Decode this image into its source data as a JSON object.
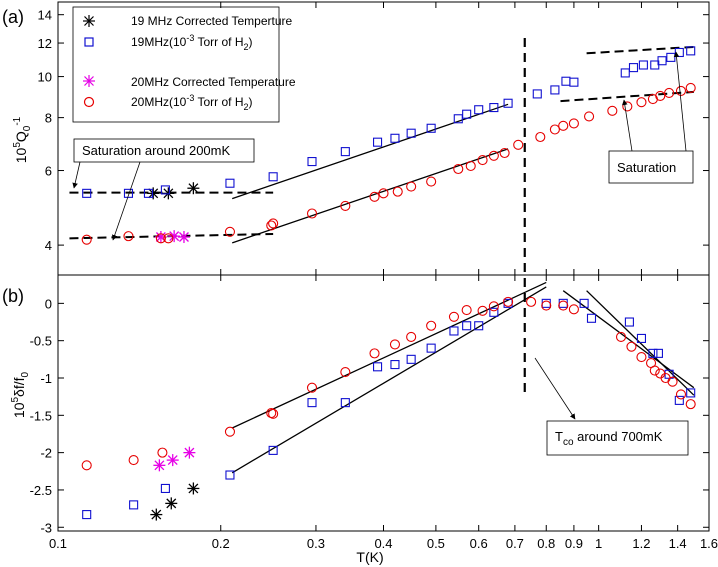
{
  "chart_data": [
    {
      "type": "scatter",
      "panel_label": "(a)",
      "xlabel": "",
      "ylabel": "10^5Q_0^-1",
      "ylabel_parts": {
        "base": "10",
        "exp1": "5",
        "main": "Q",
        "sub": "0",
        "exp2": "-1"
      },
      "xscale": "log",
      "yscale": "log",
      "xlim": [
        0.1,
        1.6
      ],
      "ylim": [
        3.4,
        15
      ],
      "yticks": [
        4,
        6,
        8,
        10,
        12,
        14
      ],
      "ytick_labels": [
        "4",
        "6",
        "8",
        "10",
        "12",
        "14"
      ],
      "series": [
        {
          "name": "19 MHz Corrected Temperture",
          "marker": "asterisk",
          "color": "#000000",
          "x": [
            0.15,
            0.16,
            0.178
          ],
          "y": [
            5.3,
            5.3,
            5.45
          ]
        },
        {
          "name": "19MHz(10^-3 Torr of H2)",
          "legend_parts": {
            "pre": "19MHz(10",
            "sup": "-3",
            "mid": " Torr of H",
            "sub": "2",
            "post": ")"
          },
          "marker": "square",
          "color": "#1010d0",
          "x": [
            0.113,
            0.135,
            0.147,
            0.158,
            0.208,
            0.25,
            0.295,
            0.34,
            0.39,
            0.42,
            0.45,
            0.49,
            0.55,
            0.57,
            0.6,
            0.64,
            0.68,
            0.77,
            0.83,
            0.87,
            0.9,
            1.12,
            1.16,
            1.21,
            1.27,
            1.31,
            1.36,
            1.41,
            1.48
          ],
          "y": [
            5.3,
            5.3,
            5.3,
            5.4,
            5.6,
            5.8,
            6.3,
            6.65,
            7.0,
            7.15,
            7.35,
            7.55,
            7.95,
            8.15,
            8.35,
            8.45,
            8.65,
            9.1,
            9.3,
            9.75,
            9.7,
            10.2,
            10.5,
            10.65,
            10.65,
            10.9,
            11.1,
            11.4,
            11.5
          ]
        },
        {
          "name": "20MHz Corrected Temperature",
          "marker": "asterisk",
          "color": "#e600e6",
          "x": [
            0.155,
            0.164,
            0.171
          ],
          "y": [
            4.18,
            4.2,
            4.18
          ]
        },
        {
          "name": "20MHz(10^-3 Torr of H2)",
          "legend_parts": {
            "pre": "20MHz(10",
            "sup": "-3",
            "mid": " Torr of H",
            "sub": "2",
            "post": ")"
          },
          "marker": "circle",
          "color": "#e60000",
          "x": [
            0.113,
            0.135,
            0.155,
            0.16,
            0.208,
            0.248,
            0.25,
            0.295,
            0.34,
            0.385,
            0.4,
            0.425,
            0.45,
            0.49,
            0.55,
            0.58,
            0.61,
            0.64,
            0.67,
            0.71,
            0.78,
            0.83,
            0.86,
            0.9,
            0.96,
            1.06,
            1.13,
            1.2,
            1.26,
            1.3,
            1.35,
            1.42,
            1.48
          ],
          "y": [
            4.12,
            4.2,
            4.15,
            4.15,
            4.3,
            4.45,
            4.5,
            4.75,
            4.95,
            5.2,
            5.3,
            5.35,
            5.5,
            5.65,
            6.05,
            6.15,
            6.35,
            6.5,
            6.6,
            6.9,
            7.2,
            7.5,
            7.65,
            7.75,
            8.05,
            8.3,
            8.5,
            8.7,
            8.85,
            9.0,
            9.15,
            9.25,
            9.4
          ]
        }
      ],
      "fit_lines": [
        {
          "style": "dashed",
          "x": [
            0.105,
            0.25
          ],
          "y": [
            5.32,
            5.32
          ]
        },
        {
          "style": "dashed",
          "x": [
            0.105,
            0.25
          ],
          "y": [
            4.15,
            4.25
          ]
        },
        {
          "style": "solid",
          "x": [
            0.21,
            0.68
          ],
          "y": [
            5.15,
            8.6
          ]
        },
        {
          "style": "solid",
          "x": [
            0.21,
            0.68
          ],
          "y": [
            4.05,
            6.75
          ]
        },
        {
          "style": "dashed",
          "x": [
            0.95,
            1.5
          ],
          "y": [
            11.35,
            11.75
          ]
        },
        {
          "style": "dashed",
          "x": [
            0.85,
            1.5
          ],
          "y": [
            8.75,
            9.2
          ]
        }
      ],
      "annotations": [
        {
          "text": "Saturation around 200mK",
          "arrows_to": [
            [
              0.125,
              4.2
            ],
            [
              0.115,
              5.32
            ]
          ]
        },
        {
          "text": "Saturation",
          "arrows_to": [
            [
              1.43,
              9.2
            ],
            [
              1.2,
              8.9
            ]
          ]
        }
      ]
    },
    {
      "type": "scatter",
      "panel_label": "(b)",
      "xlabel": "T(K)",
      "ylabel": "10^5δf/f_0",
      "ylabel_parts": {
        "base": "10",
        "exp": "5",
        "main": "δf/f",
        "sub": "0"
      },
      "xscale": "log",
      "yscale": "linear",
      "xlim": [
        0.1,
        1.6
      ],
      "ylim": [
        -3.05,
        0.38
      ],
      "xticks": [
        0.1,
        0.2,
        0.3,
        0.4,
        0.5,
        0.6,
        0.7,
        0.8,
        0.9,
        1,
        1.2,
        1.4,
        1.6
      ],
      "xtick_labels": [
        "0.1",
        "0.2",
        "0.3",
        "0.4",
        "0.5",
        "0.6",
        "0.7",
        "0.8",
        "0.9",
        "1",
        "1.2",
        "1.4",
        "1.6"
      ],
      "yticks": [
        0,
        -0.5,
        -1,
        -1.5,
        -2,
        -2.5,
        -3
      ],
      "ytick_labels": [
        "0",
        "-0.5",
        "-1",
        "-1.5",
        "-2",
        "-2.5",
        "-3"
      ],
      "series": [
        {
          "name": "19 MHz Corrected Temperture",
          "marker": "asterisk",
          "color": "#000000",
          "x": [
            0.152,
            0.162,
            0.178
          ],
          "y": [
            -2.83,
            -2.68,
            -2.48
          ]
        },
        {
          "name": "19MHz(10^-3 Torr of H2)",
          "marker": "square",
          "color": "#1010d0",
          "x": [
            0.113,
            0.138,
            0.158,
            0.208,
            0.25,
            0.295,
            0.34,
            0.39,
            0.42,
            0.45,
            0.49,
            0.54,
            0.57,
            0.6,
            0.64,
            0.68,
            0.8,
            0.86,
            0.94,
            0.97,
            1.14,
            1.2,
            1.26,
            1.29,
            1.35,
            1.41,
            1.48
          ],
          "y": [
            -2.83,
            -2.7,
            -2.48,
            -2.3,
            -1.97,
            -1.33,
            -1.33,
            -0.85,
            -0.82,
            -0.75,
            -0.6,
            -0.37,
            -0.3,
            -0.3,
            -0.12,
            0,
            0,
            0,
            0,
            -0.2,
            -0.25,
            -0.47,
            -0.67,
            -0.67,
            -0.95,
            -1.3,
            -1.2
          ]
        },
        {
          "name": "20MHz Corrected Temperature",
          "marker": "asterisk",
          "color": "#e600e6",
          "x": [
            0.154,
            0.163,
            0.175
          ],
          "y": [
            -2.17,
            -2.1,
            -2.0
          ]
        },
        {
          "name": "20MHz(10^-3 Torr of H2)",
          "marker": "circle",
          "color": "#e60000",
          "x": [
            0.113,
            0.138,
            0.156,
            0.208,
            0.248,
            0.25,
            0.295,
            0.34,
            0.385,
            0.42,
            0.45,
            0.49,
            0.54,
            0.57,
            0.61,
            0.64,
            0.68,
            0.75,
            0.8,
            0.86,
            0.9,
            1.1,
            1.15,
            1.2,
            1.25,
            1.27,
            1.3,
            1.33,
            1.37,
            1.42,
            1.48
          ],
          "y": [
            -2.17,
            -2.1,
            -2.0,
            -1.72,
            -1.47,
            -1.48,
            -1.13,
            -0.92,
            -0.67,
            -0.55,
            -0.45,
            -0.3,
            -0.18,
            -0.09,
            -0.1,
            -0.04,
            0.02,
            0.02,
            -0.03,
            -0.03,
            -0.08,
            -0.45,
            -0.58,
            -0.72,
            -0.8,
            -0.9,
            -0.94,
            -1.0,
            -1.05,
            -1.22,
            -1.35
          ]
        }
      ],
      "fit_lines": [
        {
          "style": "solid",
          "x": [
            0.21,
            0.8
          ],
          "y": [
            -1.67,
            0.28
          ]
        },
        {
          "style": "solid",
          "x": [
            0.21,
            0.8
          ],
          "y": [
            -2.27,
            0.22
          ]
        },
        {
          "style": "solid",
          "x": [
            0.86,
            1.5
          ],
          "y": [
            0.17,
            -1.13
          ]
        },
        {
          "style": "solid",
          "x": [
            0.95,
            1.5
          ],
          "y": [
            0.17,
            -1.23
          ]
        }
      ],
      "annotations": [
        {
          "text": "T_co around 700mK",
          "text_parts": {
            "main": "T",
            "sub": "co",
            "rest": " around 700mK"
          },
          "arrows_to": [
            [
              0.745,
              -0.45
            ]
          ]
        }
      ]
    }
  ],
  "transition": {
    "style": "dashed",
    "x": 0.73
  }
}
